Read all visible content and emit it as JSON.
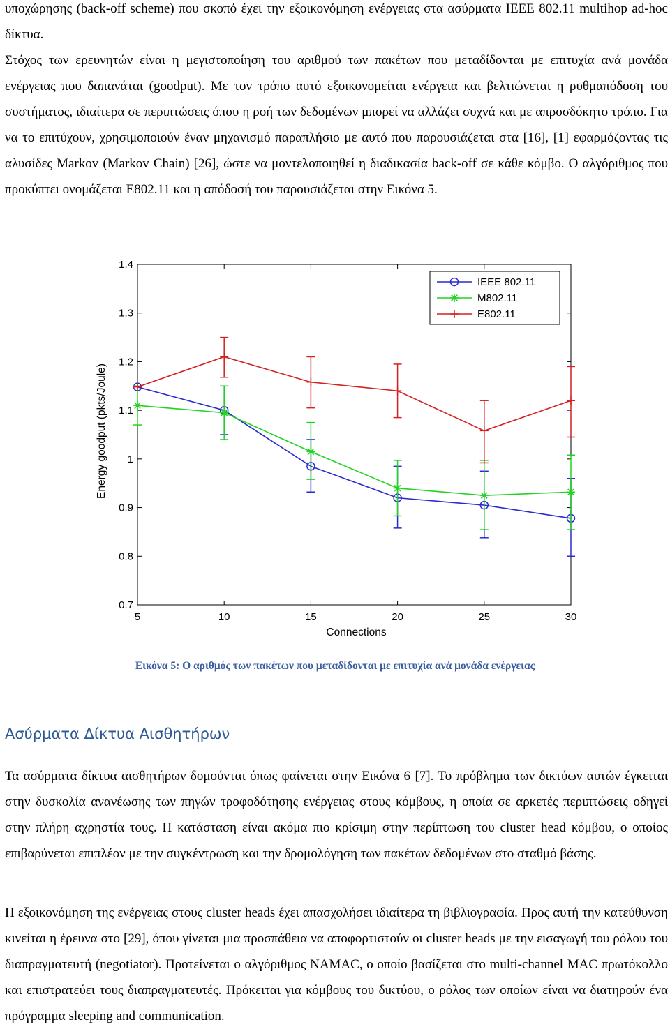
{
  "paragraphs": {
    "p1": "υποχώρησης (back-off scheme) που σκοπό έχει την εξοικονόμηση ενέργειας στα ασύρματα IEEE 802.11 multihop ad-hoc δίκτυα.",
    "p2": "Στόχος των ερευνητών είναι η μεγιστοποίηση του αριθμού των πακέτων που μεταδίδονται με επιτυχία ανά μονάδα ενέργειας που δαπανάται (goodput). Με τον τρόπο αυτό εξοικονομείται ενέργεια και βελτιώνεται η ρυθμαπόδοση του συστήματος, ιδιαίτερα σε περιπτώσεις όπου η ροή των δεδομένων μπορεί να αλλάζει συχνά και με απροσδόκητο τρόπο. Για να το επιτύχουν, χρησιμοποιούν έναν μηχανισμό παραπλήσιο με αυτό που παρουσιάζεται στα [16], [1] εφαρμόζοντας τις αλυσίδες Markov (Markov Chain) [26], ώστε να μοντελοποιηθεί η διαδικασία back-off σε κάθε κόμβο. Ο αλγόριθμος που προκύπτει ονομάζεται E802.11 και η απόδοσή του παρουσιάζεται στην Εικόνα 5.",
    "p3": "Τα ασύρματα δίκτυα αισθητήρων δομούνται όπως φαίνεται στην Εικόνα 6 [7]. Το πρόβλημα των δικτύων αυτών έγκειται στην δυσκολία ανανέωσης των πηγών τροφοδότησης ενέργειας στους κόμβους, η οποία σε αρκετές περιπτώσεις οδηγεί στην πλήρη αχρηστία τους. Η κατάσταση είναι ακόμα πιο κρίσιμη στην περίπτωση του cluster head κόμβου, ο οποίος επιβαρύνεται επιπλέον με την συγκέντρωση και την δρομολόγηση των πακέτων δεδομένων στο σταθμό βάσης.",
    "p4": "Η εξοικονόμηση της ενέργειας στους cluster heads έχει απασχολήσει ιδιαίτερα τη βιβλιογραφία. Προς αυτή την κατεύθυνση κινείται η έρευνα στο [29], όπου γίνεται μια προσπάθεια να αποφορτιστούν οι cluster heads με την εισαγωγή του ρόλου του διαπραγματευτή (negotiator). Προτείνεται ο αλγόριθμος NAMAC, ο οποίο βασίζεται στο multi-channel MAC πρωτόκολλο και επιστρατεύει τους διαπραγματευτές. Πρόκειται για κόμβους του δικτύου, ο ρόλος των οποίων είναι να διατηρούν ένα πρόγραμμα sleeping and communication."
  },
  "caption": "Εικόνα 5: Ο αριθμός των πακέτων που μεταδίδονται με επιτυχία ανά μονάδα ενέργειας",
  "heading": "Ασύρματα Δίκτυα Αισθητήρων",
  "chart_data": {
    "type": "line",
    "xlabel": "Connections",
    "ylabel": "Energy goodput (pkts/Joule)",
    "x": [
      5,
      10,
      15,
      20,
      25,
      30
    ],
    "xlim": [
      5,
      30
    ],
    "ylim": [
      0.7,
      1.4
    ],
    "xticks": [
      "5",
      "10",
      "15",
      "20",
      "25",
      "30"
    ],
    "yticks": [
      "0.7",
      "0.8",
      "0.9",
      "1",
      "1.1",
      "1.2",
      "1.3",
      "1.4"
    ],
    "legend_position": "top-right",
    "series": [
      {
        "name": "IEEE 802.11",
        "color": "#2a2ad0",
        "marker": "circle",
        "values": [
          1.148,
          1.1,
          0.985,
          0.92,
          0.905,
          0.878
        ],
        "err_low": [
          1.148,
          1.05,
          0.932,
          0.858,
          0.838,
          0.8
        ],
        "err_high": [
          1.148,
          1.15,
          1.04,
          0.985,
          0.975,
          0.96
        ]
      },
      {
        "name": "M802.11",
        "color": "#22d422",
        "marker": "star",
        "values": [
          1.11,
          1.095,
          1.015,
          0.94,
          0.925,
          0.932
        ],
        "err_low": [
          1.07,
          1.04,
          0.958,
          0.883,
          0.855,
          0.855
        ],
        "err_high": [
          1.15,
          1.15,
          1.075,
          0.997,
          0.997,
          1.008
        ]
      },
      {
        "name": "E802.11",
        "color": "#d42020",
        "marker": "plus",
        "values": [
          1.148,
          1.21,
          1.158,
          1.14,
          1.058,
          1.12
        ],
        "err_low": [
          1.148,
          1.168,
          1.105,
          1.085,
          0.992,
          1.045
        ],
        "err_high": [
          1.148,
          1.25,
          1.21,
          1.195,
          1.12,
          1.19
        ]
      }
    ]
  }
}
